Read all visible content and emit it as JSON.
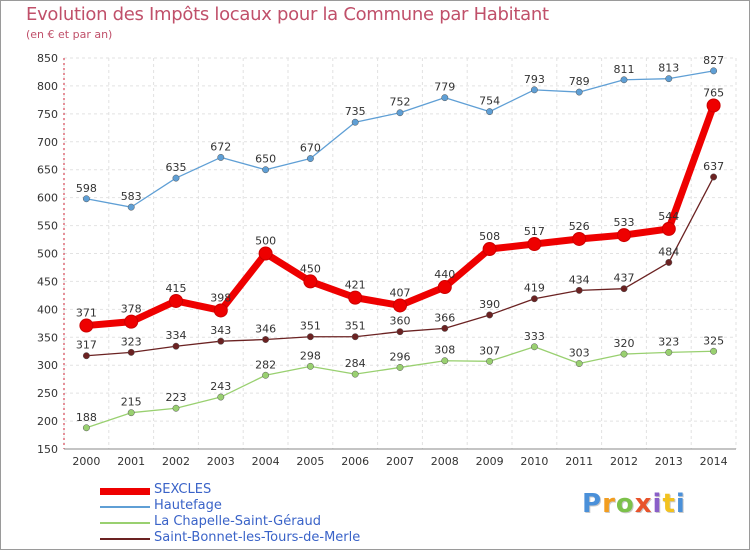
{
  "header": {
    "title": "Evolution des Impôts locaux pour la Commune par Habitant",
    "subtitle": "(en € et par an)"
  },
  "logo": {
    "text": "Proxiti"
  },
  "chart_data": {
    "type": "line",
    "title": "Evolution des Impôts locaux pour la Commune par Habitant",
    "subtitle": "(en € et par an)",
    "xlabel": "",
    "ylabel": "",
    "x": [
      "2000",
      "2001",
      "2002",
      "2003",
      "2004",
      "2005",
      "2006",
      "2007",
      "2008",
      "2009",
      "2010",
      "2011",
      "2012",
      "2013",
      "2014"
    ],
    "ylim": [
      150,
      850
    ],
    "yticks": [
      150,
      200,
      250,
      300,
      350,
      400,
      450,
      500,
      550,
      600,
      650,
      700,
      750,
      800,
      850
    ],
    "grid": true,
    "legend": "bottom-left",
    "series": [
      {
        "name": "SEXCLES",
        "color": "#ee0000",
        "values": [
          371,
          378,
          415,
          398,
          500,
          450,
          421,
          407,
          440,
          508,
          517,
          526,
          533,
          544,
          765
        ]
      },
      {
        "name": "Hautefage",
        "color": "#5f9fd5",
        "values": [
          598,
          583,
          635,
          672,
          650,
          670,
          735,
          752,
          779,
          754,
          793,
          789,
          811,
          813,
          827
        ]
      },
      {
        "name": "La Chapelle-Saint-Géraud",
        "color": "#99d070",
        "values": [
          188,
          215,
          223,
          243,
          282,
          298,
          284,
          296,
          308,
          307,
          333,
          303,
          320,
          323,
          325
        ]
      },
      {
        "name": "Saint-Bonnet-les-Tours-de-Merle",
        "color": "#6b2222",
        "values": [
          317,
          323,
          334,
          343,
          346,
          351,
          351,
          360,
          366,
          390,
          419,
          434,
          437,
          484,
          637
        ]
      }
    ]
  }
}
